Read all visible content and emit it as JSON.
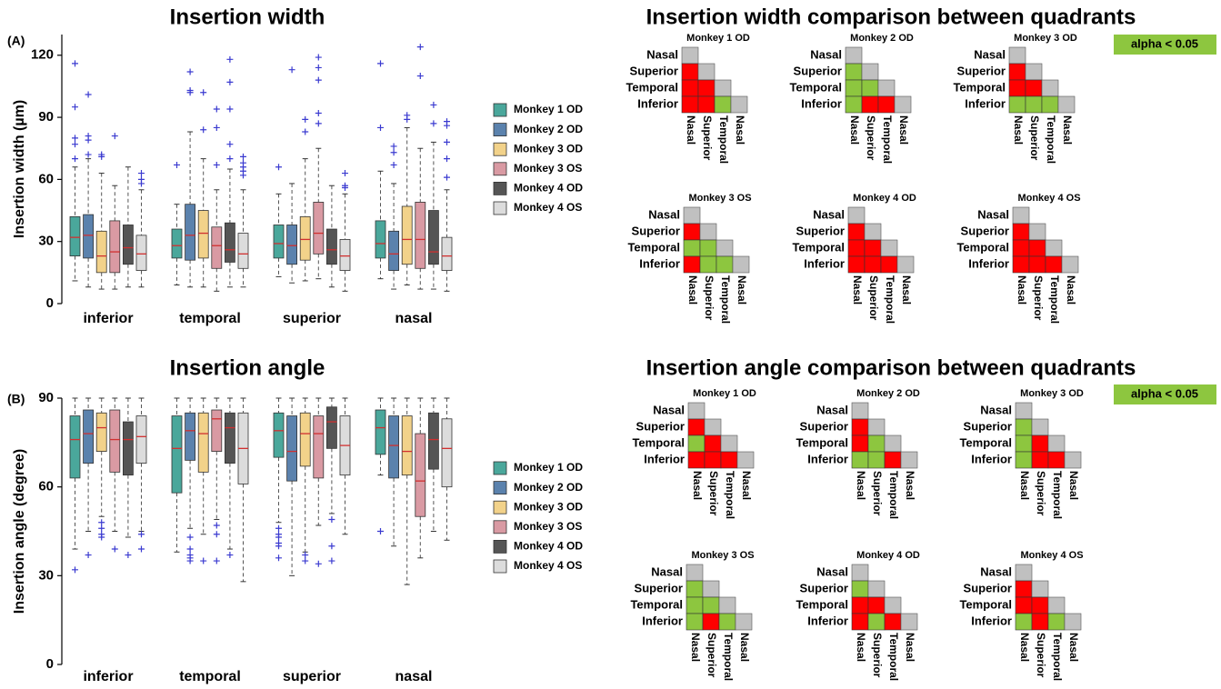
{
  "chart_data": [
    {
      "type": "box",
      "panel_label": "(A)",
      "title": "Insertion width",
      "ylabel": "Insertion width (µm)",
      "categories": [
        "inferior",
        "temporal",
        "superior",
        "nasal"
      ],
      "ylim": [
        0,
        130
      ],
      "yticks": [
        0,
        30,
        60,
        90,
        120
      ],
      "median_color": "#d03030",
      "outlier_color": "#3a3ad0",
      "series": [
        {
          "name": "Monkey 1 OD",
          "color": "#4aa79b",
          "values": [
            {
              "low": 11,
              "q1": 23,
              "median": 32,
              "q3": 42,
              "high": 66,
              "outliers": [
                70,
                77,
                80,
                95,
                116
              ]
            },
            {
              "low": 9,
              "q1": 22,
              "median": 28,
              "q3": 36,
              "high": 48,
              "outliers": [
                67
              ]
            },
            {
              "low": 13,
              "q1": 22,
              "median": 29,
              "q3": 38,
              "high": 53,
              "outliers": [
                66
              ]
            },
            {
              "low": 12,
              "q1": 22,
              "median": 29,
              "q3": 40,
              "high": 64,
              "outliers": [
                85,
                116
              ]
            }
          ]
        },
        {
          "name": "Monkey 2 OD",
          "color": "#5b82ad",
          "values": [
            {
              "low": 8,
              "q1": 22,
              "median": 33,
              "q3": 43,
              "high": 70,
              "outliers": [
                72,
                79,
                81,
                101
              ]
            },
            {
              "low": 8,
              "q1": 21,
              "median": 33,
              "q3": 48,
              "high": 83,
              "outliers": [
                102,
                103,
                112
              ]
            },
            {
              "low": 10,
              "q1": 19,
              "median": 28,
              "q3": 38,
              "high": 58,
              "outliers": [
                113
              ]
            },
            {
              "low": 7,
              "q1": 16,
              "median": 24,
              "q3": 35,
              "high": 58,
              "outliers": [
                67,
                73,
                76
              ]
            }
          ]
        },
        {
          "name": "Monkey 3 OD",
          "color": "#f2d28a",
          "values": [
            {
              "low": 7,
              "q1": 15,
              "median": 23,
              "q3": 35,
              "high": 63,
              "outliers": [
                71,
                72
              ]
            },
            {
              "low": 8,
              "q1": 22,
              "median": 34,
              "q3": 45,
              "high": 70,
              "outliers": [
                84,
                102
              ]
            },
            {
              "low": 11,
              "q1": 21,
              "median": 31,
              "q3": 42,
              "high": 70,
              "outliers": [
                83,
                89
              ]
            },
            {
              "low": 9,
              "q1": 19,
              "median": 31,
              "q3": 47,
              "high": 85,
              "outliers": [
                89,
                91
              ]
            }
          ]
        },
        {
          "name": "Monkey 3 OS",
          "color": "#d99aa3",
          "values": [
            {
              "low": 7,
              "q1": 15,
              "median": 25,
              "q3": 40,
              "high": 57,
              "outliers": [
                81
              ]
            },
            {
              "low": 6,
              "q1": 17,
              "median": 28,
              "q3": 37,
              "high": 55,
              "outliers": [
                67,
                85,
                94
              ]
            },
            {
              "low": 12,
              "q1": 24,
              "median": 34,
              "q3": 49,
              "high": 75,
              "outliers": [
                87,
                92,
                108,
                114,
                119
              ]
            },
            {
              "low": 7,
              "q1": 17,
              "median": 31,
              "q3": 49,
              "high": 75,
              "outliers": [
                110,
                124
              ]
            }
          ]
        },
        {
          "name": "Monkey 4 OD",
          "color": "#555555",
          "values": [
            {
              "low": 8,
              "q1": 19,
              "median": 27,
              "q3": 38,
              "high": 66,
              "outliers": []
            },
            {
              "low": 8,
              "q1": 20,
              "median": 26,
              "q3": 39,
              "high": 65,
              "outliers": [
                70,
                77,
                94,
                107,
                118
              ]
            },
            {
              "low": 8,
              "q1": 19,
              "median": 26,
              "q3": 36,
              "high": 57,
              "outliers": []
            },
            {
              "low": 7,
              "q1": 19,
              "median": 25,
              "q3": 45,
              "high": 78,
              "outliers": [
                87,
                96
              ]
            }
          ]
        },
        {
          "name": "Monkey 4 OS",
          "color": "#dcdcdc",
          "values": [
            {
              "low": 8,
              "q1": 16,
              "median": 24,
              "q3": 33,
              "high": 55,
              "outliers": [
                58,
                60,
                63
              ]
            },
            {
              "low": 8,
              "q1": 17,
              "median": 24,
              "q3": 34,
              "high": 55,
              "outliers": [
                62,
                64,
                66,
                68,
                71
              ]
            },
            {
              "low": 6,
              "q1": 16,
              "median": 23,
              "q3": 31,
              "high": 53,
              "outliers": [
                56,
                57,
                63
              ]
            },
            {
              "low": 6,
              "q1": 16,
              "median": 23,
              "q3": 32,
              "high": 55,
              "outliers": [
                61,
                70,
                78,
                86,
                88
              ]
            }
          ]
        }
      ]
    },
    {
      "type": "box",
      "panel_label": "(B)",
      "title": "Insertion angle",
      "ylabel": "Insertion angle (degree)",
      "categories": [
        "inferior",
        "temporal",
        "superior",
        "nasal"
      ],
      "ylim": [
        0,
        90
      ],
      "yticks": [
        0,
        30,
        60,
        90
      ],
      "median_color": "#d03030",
      "outlier_color": "#3a3ad0",
      "series": [
        {
          "name": "Monkey 1 OD",
          "color": "#4aa79b",
          "values": [
            {
              "low": 39,
              "q1": 63,
              "median": 76,
              "q3": 84,
              "high": 90,
              "outliers": [
                32
              ]
            },
            {
              "low": 38,
              "q1": 58,
              "median": 73,
              "q3": 84,
              "high": 90,
              "outliers": []
            },
            {
              "low": 48,
              "q1": 70,
              "median": 79,
              "q3": 85,
              "high": 90,
              "outliers": [
                36,
                40,
                41,
                43,
                44,
                46
              ]
            },
            {
              "low": 64,
              "q1": 71,
              "median": 80,
              "q3": 86,
              "high": 90,
              "outliers": [
                45
              ]
            }
          ]
        },
        {
          "name": "Monkey 2 OD",
          "color": "#5b82ad",
          "values": [
            {
              "low": 45,
              "q1": 68,
              "median": 78,
              "q3": 86,
              "high": 90,
              "outliers": [
                37
              ]
            },
            {
              "low": 46,
              "q1": 69,
              "median": 79,
              "q3": 85,
              "high": 90,
              "outliers": [
                35,
                36,
                37,
                39,
                43
              ]
            },
            {
              "low": 30,
              "q1": 62,
              "median": 72,
              "q3": 84,
              "high": 90,
              "outliers": []
            },
            {
              "low": 40,
              "q1": 63,
              "median": 74,
              "q3": 84,
              "high": 90,
              "outliers": []
            }
          ]
        },
        {
          "name": "Monkey 3 OD",
          "color": "#f2d28a",
          "values": [
            {
              "low": 50,
              "q1": 72,
              "median": 80,
              "q3": 85,
              "high": 90,
              "outliers": [
                43,
                44,
                46,
                48
              ]
            },
            {
              "low": 44,
              "q1": 65,
              "median": 78,
              "q3": 85,
              "high": 90,
              "outliers": [
                35
              ]
            },
            {
              "low": 38,
              "q1": 67,
              "median": 78,
              "q3": 85,
              "high": 90,
              "outliers": [
                35,
                37
              ]
            },
            {
              "low": 27,
              "q1": 64,
              "median": 72,
              "q3": 84,
              "high": 90,
              "outliers": []
            }
          ]
        },
        {
          "name": "Monkey 3 OS",
          "color": "#d99aa3",
          "values": [
            {
              "low": 45,
              "q1": 65,
              "median": 76,
              "q3": 86,
              "high": 90,
              "outliers": [
                39
              ]
            },
            {
              "low": 49,
              "q1": 72,
              "median": 83,
              "q3": 86,
              "high": 90,
              "outliers": [
                35,
                44,
                47
              ]
            },
            {
              "low": 47,
              "q1": 63,
              "median": 78,
              "q3": 84,
              "high": 90,
              "outliers": [
                34
              ]
            },
            {
              "low": 36,
              "q1": 50,
              "median": 62,
              "q3": 78,
              "high": 90,
              "outliers": []
            }
          ]
        },
        {
          "name": "Monkey 4 OD",
          "color": "#555555",
          "values": [
            {
              "low": 43,
              "q1": 64,
              "median": 76,
              "q3": 82,
              "high": 90,
              "outliers": [
                37
              ]
            },
            {
              "low": 39,
              "q1": 68,
              "median": 80,
              "q3": 85,
              "high": 90,
              "outliers": [
                37
              ]
            },
            {
              "low": 51,
              "q1": 73,
              "median": 82,
              "q3": 87,
              "high": 90,
              "outliers": [
                35,
                40,
                49
              ]
            },
            {
              "low": 45,
              "q1": 66,
              "median": 76,
              "q3": 85,
              "high": 90,
              "outliers": []
            }
          ]
        },
        {
          "name": "Monkey 4 OS",
          "color": "#dcdcdc",
          "values": [
            {
              "low": 45,
              "q1": 68,
              "median": 77,
              "q3": 84,
              "high": 90,
              "outliers": [
                39,
                44
              ]
            },
            {
              "low": 28,
              "q1": 61,
              "median": 73,
              "q3": 85,
              "high": 90,
              "outliers": []
            },
            {
              "low": 44,
              "q1": 64,
              "median": 74,
              "q3": 84,
              "high": 90,
              "outliers": []
            },
            {
              "low": 42,
              "q1": 60,
              "median": 73,
              "q3": 83,
              "high": 90,
              "outliers": []
            }
          ]
        }
      ]
    },
    {
      "type": "matrix",
      "title": "Insertion width comparison between quadrants",
      "legend": {
        "label": "alpha < 0.05",
        "color": "#8dc63f"
      },
      "diagonal_color": "#c0c0c0",
      "row_labels": [
        "Nasal",
        "Superior",
        "Temporal",
        "Inferior"
      ],
      "col_labels": [
        "Nasal",
        "Superior",
        "Temporal",
        "Nasal"
      ],
      "panels": [
        {
          "title": "Monkey 1 OD",
          "cells": [
            [
              "#ff0000"
            ],
            [
              "#ff0000",
              "#ff0000"
            ],
            [
              "#ff0000",
              "#ff0000",
              "#8dc63f"
            ]
          ]
        },
        {
          "title": "Monkey 2 OD",
          "cells": [
            [
              "#8dc63f"
            ],
            [
              "#8dc63f",
              "#8dc63f"
            ],
            [
              "#8dc63f",
              "#ff0000",
              "#ff0000"
            ]
          ]
        },
        {
          "title": "Monkey 3 OD",
          "cells": [
            [
              "#ff0000"
            ],
            [
              "#ff0000",
              "#ff0000"
            ],
            [
              "#8dc63f",
              "#8dc63f",
              "#8dc63f"
            ]
          ]
        },
        {
          "title": "Monkey 3 OS",
          "cells": [
            [
              "#ff0000"
            ],
            [
              "#8dc63f",
              "#8dc63f"
            ],
            [
              "#ff0000",
              "#8dc63f",
              "#8dc63f"
            ]
          ]
        },
        {
          "title": "Monkey 4 OD",
          "cells": [
            [
              "#ff0000"
            ],
            [
              "#ff0000",
              "#ff0000"
            ],
            [
              "#ff0000",
              "#ff0000",
              "#ff0000"
            ]
          ]
        },
        {
          "title": "Monkey 4 OS",
          "cells": [
            [
              "#ff0000"
            ],
            [
              "#ff0000",
              "#ff0000"
            ],
            [
              "#ff0000",
              "#ff0000",
              "#ff0000"
            ]
          ]
        }
      ]
    },
    {
      "type": "matrix",
      "title": "Insertion angle comparison between quadrants",
      "legend": {
        "label": "alpha < 0.05",
        "color": "#8dc63f"
      },
      "diagonal_color": "#c0c0c0",
      "row_labels": [
        "Nasal",
        "Superior",
        "Temporal",
        "Inferior"
      ],
      "col_labels": [
        "Nasal",
        "Superior",
        "Temporal",
        "Nasal"
      ],
      "panels": [
        {
          "title": "Monkey 1 OD",
          "cells": [
            [
              "#ff0000"
            ],
            [
              "#8dc63f",
              "#ff0000"
            ],
            [
              "#ff0000",
              "#ff0000",
              "#ff0000"
            ]
          ]
        },
        {
          "title": "Monkey 2 OD",
          "cells": [
            [
              "#ff0000"
            ],
            [
              "#ff0000",
              "#8dc63f"
            ],
            [
              "#8dc63f",
              "#8dc63f",
              "#ff0000"
            ]
          ]
        },
        {
          "title": "Monkey 3 OD",
          "cells": [
            [
              "#8dc63f"
            ],
            [
              "#8dc63f",
              "#ff0000"
            ],
            [
              "#8dc63f",
              "#ff0000",
              "#ff0000"
            ]
          ]
        },
        {
          "title": "Monkey 3 OS",
          "cells": [
            [
              "#8dc63f"
            ],
            [
              "#8dc63f",
              "#8dc63f"
            ],
            [
              "#8dc63f",
              "#ff0000",
              "#8dc63f"
            ]
          ]
        },
        {
          "title": "Monkey 4 OD",
          "cells": [
            [
              "#8dc63f"
            ],
            [
              "#ff0000",
              "#ff0000"
            ],
            [
              "#ff0000",
              "#8dc63f",
              "#ff0000"
            ]
          ]
        },
        {
          "title": "Monkey 4 OS",
          "cells": [
            [
              "#ff0000"
            ],
            [
              "#ff0000",
              "#ff0000"
            ],
            [
              "#8dc63f",
              "#ff0000",
              "#8dc63f"
            ]
          ]
        }
      ]
    }
  ]
}
